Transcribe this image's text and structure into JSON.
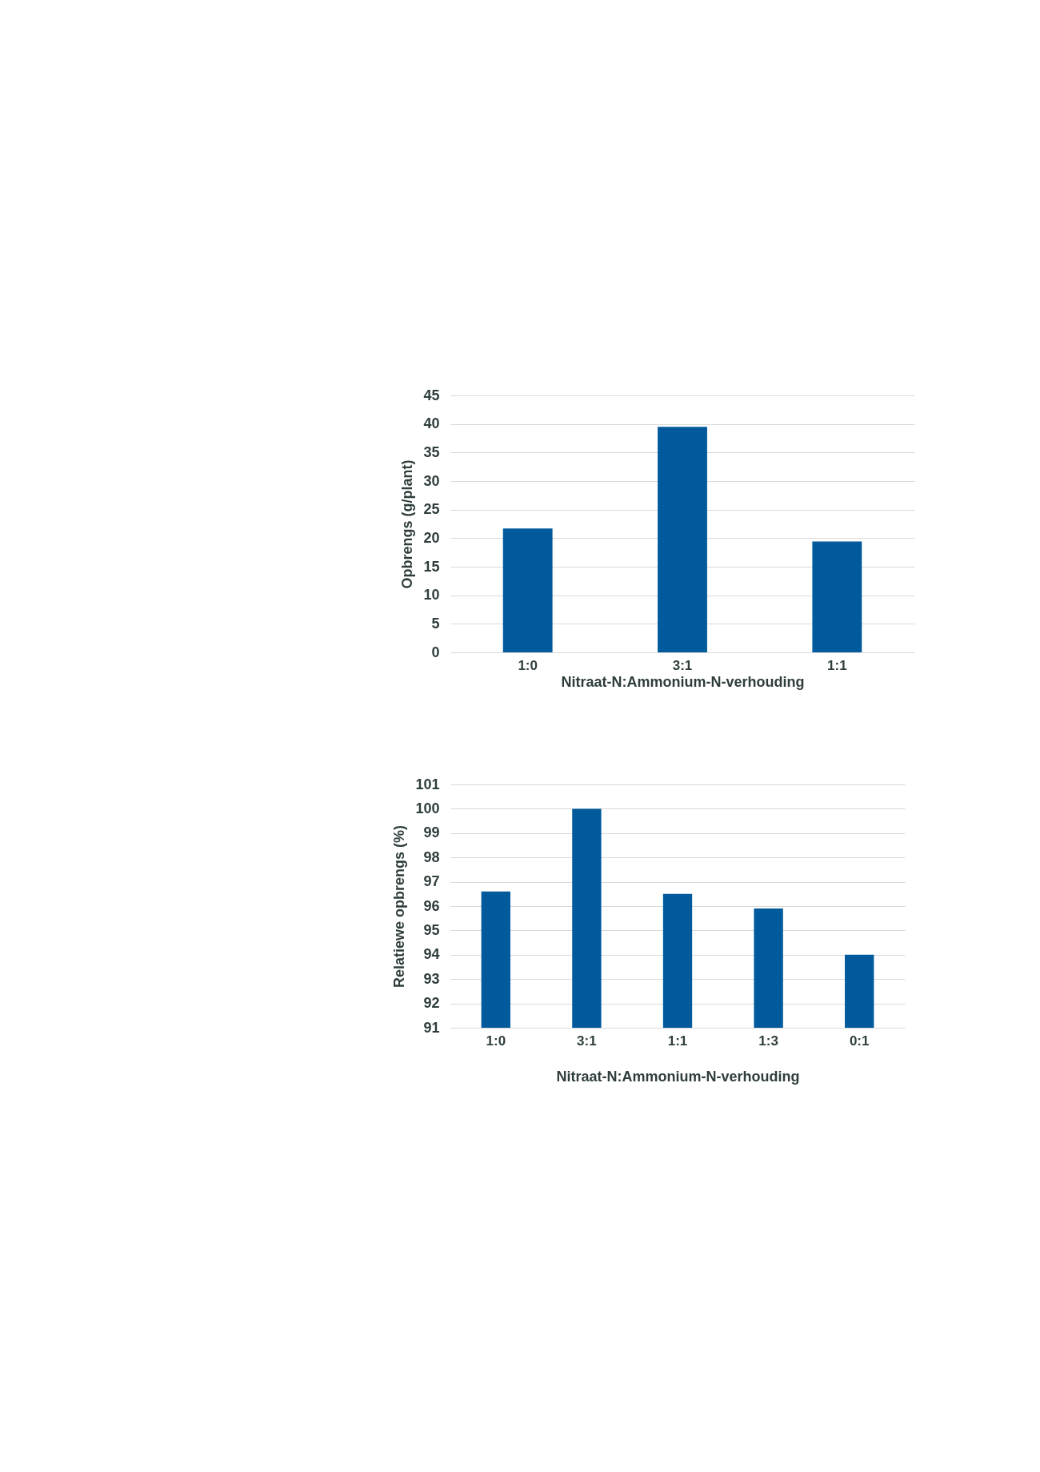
{
  "chart_data": [
    {
      "type": "bar",
      "xlabel": "Nitraat-N:Ammonium-N-verhouding",
      "ylabel": "Opbrengs (g/plant)",
      "categories": [
        "1:0",
        "3:1",
        "1:1"
      ],
      "values": [
        21.7,
        39.5,
        19.4
      ],
      "color": "#005a9c",
      "ylim": [
        0,
        45
      ],
      "yticks": [
        0,
        5,
        10,
        15,
        20,
        25,
        30,
        35,
        40,
        45
      ],
      "grid": "y"
    },
    {
      "type": "bar",
      "xlabel": "Nitraat-N:Ammonium-N-verhouding",
      "ylabel": "Relatiewe opbrengs (%)",
      "categories": [
        "1:0",
        "3:1",
        "1:1",
        "1:3",
        "0:1"
      ],
      "values": [
        96.6,
        100,
        96.5,
        95.9,
        94.0
      ],
      "color": "#005a9c",
      "ylim": [
        91,
        101
      ],
      "yticks": [
        91,
        92,
        93,
        94,
        95,
        96,
        97,
        98,
        99,
        100,
        101
      ],
      "grid": "y"
    }
  ]
}
